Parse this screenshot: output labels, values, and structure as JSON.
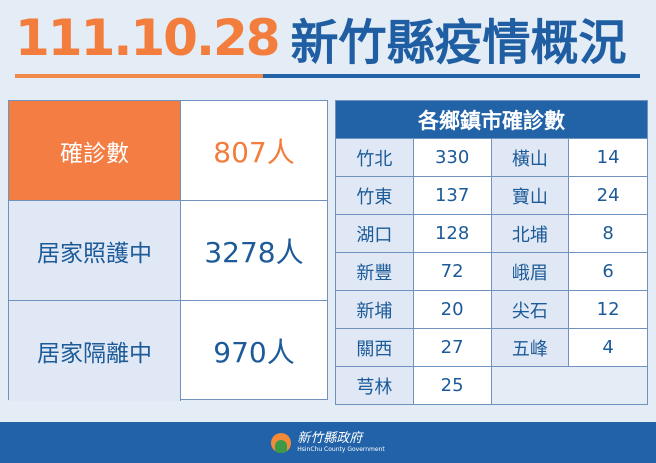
{
  "title": {
    "date": "111.10.28",
    "heading": "新竹縣疫情概況"
  },
  "summary": [
    {
      "label": "確診數",
      "value": "807人",
      "highlight": true
    },
    {
      "label": "居家照護中",
      "value": "3278人"
    },
    {
      "label": "居家隔離中",
      "value": "970人"
    }
  ],
  "towns": {
    "header": "各鄉鎮市確診數",
    "rows": [
      [
        {
          "name": "竹北",
          "count": "330"
        },
        {
          "name": "橫山",
          "count": "14"
        }
      ],
      [
        {
          "name": "竹東",
          "count": "137"
        },
        {
          "name": "寶山",
          "count": "24"
        }
      ],
      [
        {
          "name": "湖口",
          "count": "128"
        },
        {
          "name": "北埔",
          "count": "8"
        }
      ],
      [
        {
          "name": "新豐",
          "count": "72"
        },
        {
          "name": "峨眉",
          "count": "6"
        }
      ],
      [
        {
          "name": "新埔",
          "count": "20"
        },
        {
          "name": "尖石",
          "count": "12"
        }
      ],
      [
        {
          "name": "關西",
          "count": "27"
        },
        {
          "name": "五峰",
          "count": "4"
        }
      ],
      [
        {
          "name": "芎林",
          "count": "25"
        }
      ]
    ]
  },
  "footer": {
    "org_cn": "新竹縣政府",
    "org_en": "HsinChu County Government"
  },
  "colors": {
    "orange": "#f27d3d",
    "blue": "#2263a8",
    "background": "#e4ecf6"
  }
}
